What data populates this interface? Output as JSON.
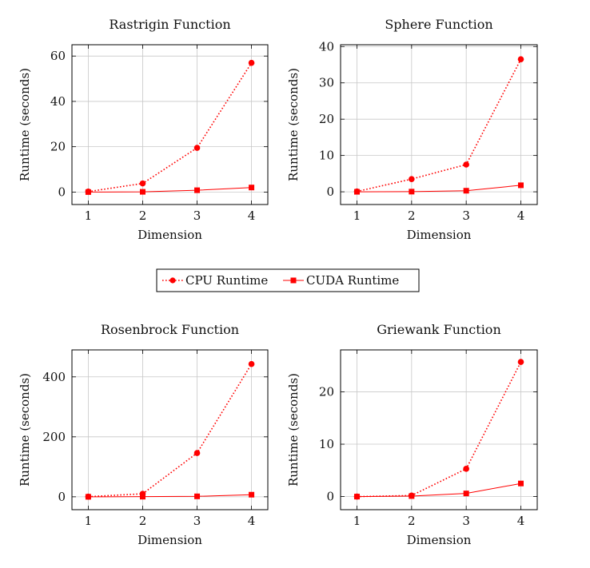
{
  "colors": {
    "series": "#ff0000",
    "grid": "#c8c8c8",
    "axis": "#000000"
  },
  "legend": {
    "placement": "center-between-rows",
    "items": [
      {
        "label": "CPU Runtime",
        "marker": "circle",
        "line": "dotted"
      },
      {
        "label": "CUDA Runtime",
        "marker": "square",
        "line": "solid"
      }
    ]
  },
  "chart_data": [
    {
      "type": "line",
      "title": "Rastrigin Function",
      "xlabel": "Dimension",
      "ylabel": "Runtime (seconds)",
      "x": [
        1,
        2,
        3,
        4
      ],
      "xticks": [
        "1",
        "2",
        "3",
        "4"
      ],
      "xlim": [
        0.7,
        4.3
      ],
      "ylim": [
        -5.5,
        65
      ],
      "yticks": [
        0,
        20,
        40,
        60
      ],
      "ytick_labels": [
        "0",
        "20",
        "40",
        "60"
      ],
      "grid": true,
      "series": [
        {
          "name": "CPU Runtime",
          "values": [
            0.2,
            3.8,
            19.5,
            57.0
          ],
          "marker": "circle",
          "line": "dotted"
        },
        {
          "name": "CUDA Runtime",
          "values": [
            0.0,
            0.1,
            0.8,
            2.0
          ],
          "marker": "square",
          "line": "solid"
        }
      ]
    },
    {
      "type": "line",
      "title": "Sphere Function",
      "xlabel": "Dimension",
      "ylabel": "Runtime (seconds)",
      "x": [
        1,
        2,
        3,
        4
      ],
      "xticks": [
        "1",
        "2",
        "3",
        "4"
      ],
      "xlim": [
        0.7,
        4.3
      ],
      "ylim": [
        -3.5,
        40.5
      ],
      "yticks": [
        0,
        10,
        20,
        30,
        40
      ],
      "ytick_labels": [
        "0",
        "10",
        "20",
        "30",
        "40"
      ],
      "grid": true,
      "series": [
        {
          "name": "CPU Runtime",
          "values": [
            0.1,
            3.5,
            7.5,
            36.5
          ],
          "marker": "circle",
          "line": "dotted"
        },
        {
          "name": "CUDA Runtime",
          "values": [
            0.0,
            0.05,
            0.3,
            1.8
          ],
          "marker": "square",
          "line": "solid"
        }
      ]
    },
    {
      "type": "line",
      "title": "Rosenbrock Function",
      "xlabel": "Dimension",
      "ylabel": "Runtime (seconds)",
      "x": [
        1,
        2,
        3,
        4
      ],
      "xticks": [
        "1",
        "2",
        "3",
        "4"
      ],
      "xlim": [
        0.7,
        4.3
      ],
      "ylim": [
        -43,
        490
      ],
      "yticks": [
        0,
        200,
        400
      ],
      "ytick_labels": [
        "0",
        "200",
        "400"
      ],
      "grid": true,
      "series": [
        {
          "name": "CPU Runtime",
          "values": [
            0.5,
            10.0,
            146.0,
            443.0
          ],
          "marker": "circle",
          "line": "dotted"
        },
        {
          "name": "CUDA Runtime",
          "values": [
            0.0,
            0.5,
            1.5,
            7.0
          ],
          "marker": "square",
          "line": "solid"
        }
      ]
    },
    {
      "type": "line",
      "title": "Griewank Function",
      "xlabel": "Dimension",
      "ylabel": "Runtime (seconds)",
      "x": [
        1,
        2,
        3,
        4
      ],
      "xticks": [
        "1",
        "2",
        "3",
        "4"
      ],
      "xlim": [
        0.7,
        4.3
      ],
      "ylim": [
        -2.5,
        28
      ],
      "yticks": [
        0,
        10,
        20
      ],
      "ytick_labels": [
        "0",
        "10",
        "20"
      ],
      "grid": true,
      "series": [
        {
          "name": "CPU Runtime",
          "values": [
            0.0,
            0.2,
            5.3,
            25.7
          ],
          "marker": "circle",
          "line": "dotted"
        },
        {
          "name": "CUDA Runtime",
          "values": [
            0.0,
            0.1,
            0.6,
            2.5
          ],
          "marker": "square",
          "line": "solid"
        }
      ]
    }
  ]
}
